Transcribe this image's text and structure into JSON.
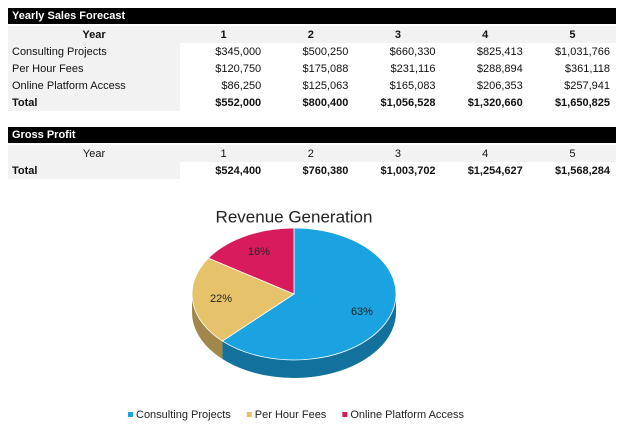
{
  "sales_forecast": {
    "title": "Yearly Sales Forecast",
    "columns": [
      "Year",
      "1",
      "2",
      "3",
      "4",
      "5"
    ],
    "rows": [
      [
        "Consulting Projects",
        "$345,000",
        "$500,250",
        "$660,330",
        "$825,413",
        "$1,031,766"
      ],
      [
        "Per Hour Fees",
        "$120,750",
        "$175,088",
        "$231,116",
        "$288,894",
        "$361,118"
      ],
      [
        "Online Platform Access",
        "$86,250",
        "$125,063",
        "$165,083",
        "$206,353",
        "$257,941"
      ],
      [
        "Total",
        "$552,000",
        "$800,400",
        "$1,056,528",
        "$1,320,660",
        "$1,650,825"
      ]
    ]
  },
  "gross_profit": {
    "title": "Gross Profit",
    "columns": [
      "Year",
      "1",
      "2",
      "3",
      "4",
      "5"
    ],
    "rows": [
      [
        "Total",
        "$524,400",
        "$760,380",
        "$1,003,702",
        "$1,254,627",
        "$1,568,284"
      ]
    ]
  },
  "chart_data": {
    "type": "pie",
    "title": "Revenue Generation",
    "categories": [
      "Consulting Projects",
      "Per Hour Fees",
      "Online Platform Access"
    ],
    "values": [
      63,
      22,
      16
    ],
    "value_labels": [
      "63%",
      "22%",
      "16%"
    ],
    "colors": [
      "#1aa3e0",
      "#e6c26a",
      "#d81b5c"
    ]
  }
}
